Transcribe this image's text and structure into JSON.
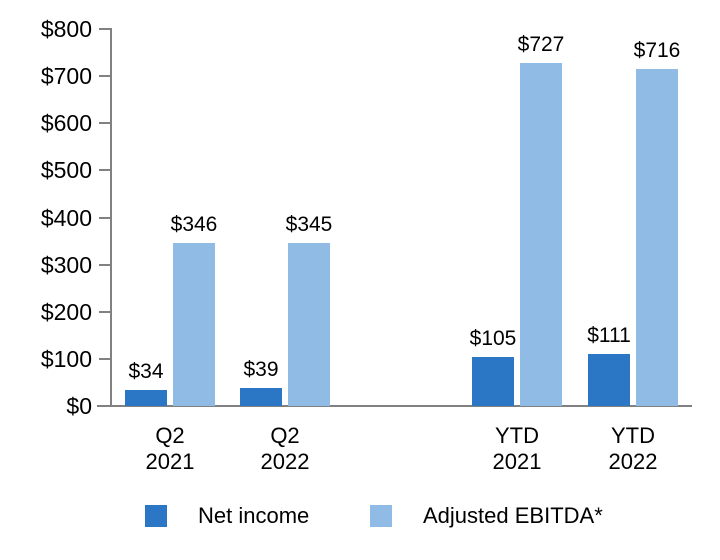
{
  "chart_data": {
    "type": "bar",
    "title": "",
    "categories": [
      "Q2 2021",
      "Q2 2022",
      "YTD 2021",
      "YTD 2022"
    ],
    "series": [
      {
        "name": "Net income",
        "color": "#2C77C5",
        "values": [
          34,
          39,
          105,
          111
        ],
        "labels": [
          "$34",
          "$39",
          "$105",
          "$111"
        ]
      },
      {
        "name": "Adjusted EBITDA*",
        "color": "#8FBBE5",
        "values": [
          346,
          345,
          727,
          716
        ],
        "labels": [
          "$346",
          "$345",
          "$727",
          "$716"
        ]
      }
    ],
    "value_prefix": "$",
    "ylim": [
      0,
      800
    ],
    "ytick_step": 100,
    "ytick_labels": [
      "$0",
      "$100",
      "$200",
      "$300",
      "$400",
      "$500",
      "$600",
      "$700",
      "$800"
    ],
    "grid": false,
    "legend_position": "bottom",
    "axis_color": "#818181",
    "text_color": "#000000"
  }
}
